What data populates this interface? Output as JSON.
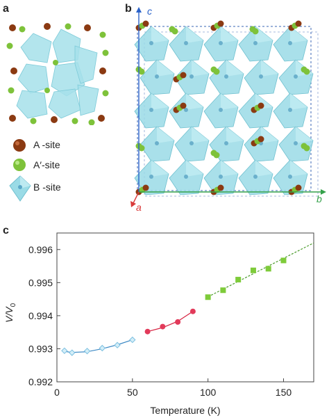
{
  "panels": {
    "a": "a",
    "b": "b",
    "c": "c"
  },
  "legend": [
    {
      "label": "A -site",
      "color": "#8b3a12"
    },
    {
      "label": "A′-site",
      "color": "#7ec23a"
    },
    {
      "label": "B -site",
      "color": "#8fdbe3"
    }
  ],
  "axes_b": {
    "c": "c",
    "a": "a",
    "b": "b"
  },
  "axis_colors": {
    "c": "#2a62c9",
    "a": "#d93a3a",
    "b": "#34a14a"
  },
  "colors": {
    "octahedron": "#9adbe6",
    "a_site": "#8b3a12",
    "a_prime_site": "#7ec23a",
    "cell_box": "#3a64b6"
  },
  "chart_data": {
    "type": "scatter",
    "xlabel": "Temperature (K)",
    "ylabel": "V/V",
    "ylabel_sub": "0",
    "xlim": [
      0,
      170
    ],
    "ylim": [
      0.992,
      0.9965
    ],
    "xticks": [
      0,
      50,
      100,
      150
    ],
    "yticks": [
      0.992,
      0.993,
      0.994,
      0.995,
      0.996
    ],
    "ytick_labels": [
      "0.992",
      "0.993",
      "0.994",
      "0.995",
      "0.996"
    ],
    "grid": false,
    "series": [
      {
        "marker": "diamond",
        "color": "#7bbfe0",
        "fit_color": "#3a88c4",
        "x": [
          5,
          10,
          20,
          30,
          40,
          50
        ],
        "y": [
          0.99294,
          0.99288,
          0.99293,
          0.99302,
          0.99311,
          0.99327
        ],
        "fit_x": [
          5,
          10,
          20,
          30,
          40,
          50
        ],
        "fit_y": [
          0.99292,
          0.99289,
          0.99291,
          0.993,
          0.99312,
          0.99327
        ]
      },
      {
        "marker": "circle",
        "color": "#e23a5a",
        "fit_color": "#d6203f",
        "x": [
          60,
          70,
          80,
          90
        ],
        "y": [
          0.99352,
          0.99367,
          0.99381,
          0.99413
        ],
        "fit_x": [
          60,
          70,
          80,
          90
        ],
        "fit_y": [
          0.99352,
          0.99364,
          0.99383,
          0.99413
        ]
      },
      {
        "marker": "square",
        "color": "#7ecb3a",
        "fit_color": "#4a9a2a",
        "x": [
          100,
          110,
          120,
          130,
          140,
          150
        ],
        "y": [
          0.99456,
          0.99477,
          0.99509,
          0.99537,
          0.99542,
          0.99567
        ],
        "fit_x": [
          100,
          170
        ],
        "fit_y": [
          0.99457,
          0.9962
        ]
      }
    ]
  }
}
